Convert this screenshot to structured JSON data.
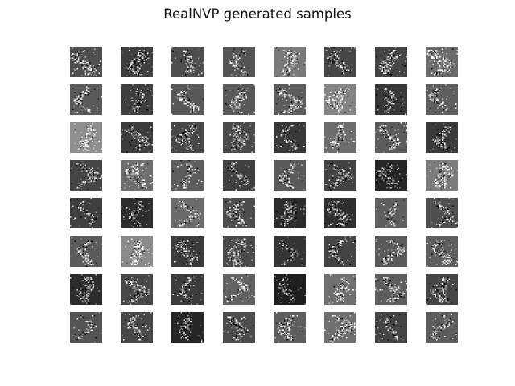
{
  "figure": {
    "title": "RealNVP generated samples"
  },
  "grid": {
    "rows": 8,
    "cols": 8,
    "sample_resolution": 28,
    "backgrounds": [
      [
        "#4f4f4f",
        "#3f3f3f",
        "#4e4e4e",
        "#555555",
        "#7a7a7a",
        "#474747",
        "#454545",
        "#6b6b6b"
      ],
      [
        "#5a5a5a",
        "#3e3e3e",
        "#585858",
        "#595959",
        "#5d5d5d",
        "#848484",
        "#373737",
        "#5e5e5e"
      ],
      [
        "#8f8f8f",
        "#3c3c3c",
        "#484848",
        "#4a4a4a",
        "#393939",
        "#6d6d6d",
        "#5c5c5c",
        "#3a3a3a"
      ],
      [
        "#454545",
        "#6e6e6e",
        "#5d5d5d",
        "#3f3f3f",
        "#5a5a5a",
        "#434343",
        "#262626",
        "#7b7b7b"
      ],
      [
        "#3f3f3f",
        "#2d2d2d",
        "#6b6b6b",
        "#4d4d4d",
        "#2c2c2c",
        "#2f2f2f",
        "#5f5f5f",
        "#4f4f4f"
      ],
      [
        "#5b5b5b",
        "#8a8a8a",
        "#3b3b3b",
        "#4a4a4a",
        "#343434",
        "#444444",
        "#5a5a5a",
        "#5e5e5e"
      ],
      [
        "#2c2c2c",
        "#484848",
        "#3c3c3c",
        "#626262",
        "#1f1f1f",
        "#6f6f6f",
        "#5e5e5e",
        "#454545"
      ],
      [
        "#545454",
        "#474747",
        "#262626",
        "#4c4c4c",
        "#5e5e5e",
        "#6f6f6f",
        "#444444",
        "#5d5d5d"
      ]
    ]
  }
}
